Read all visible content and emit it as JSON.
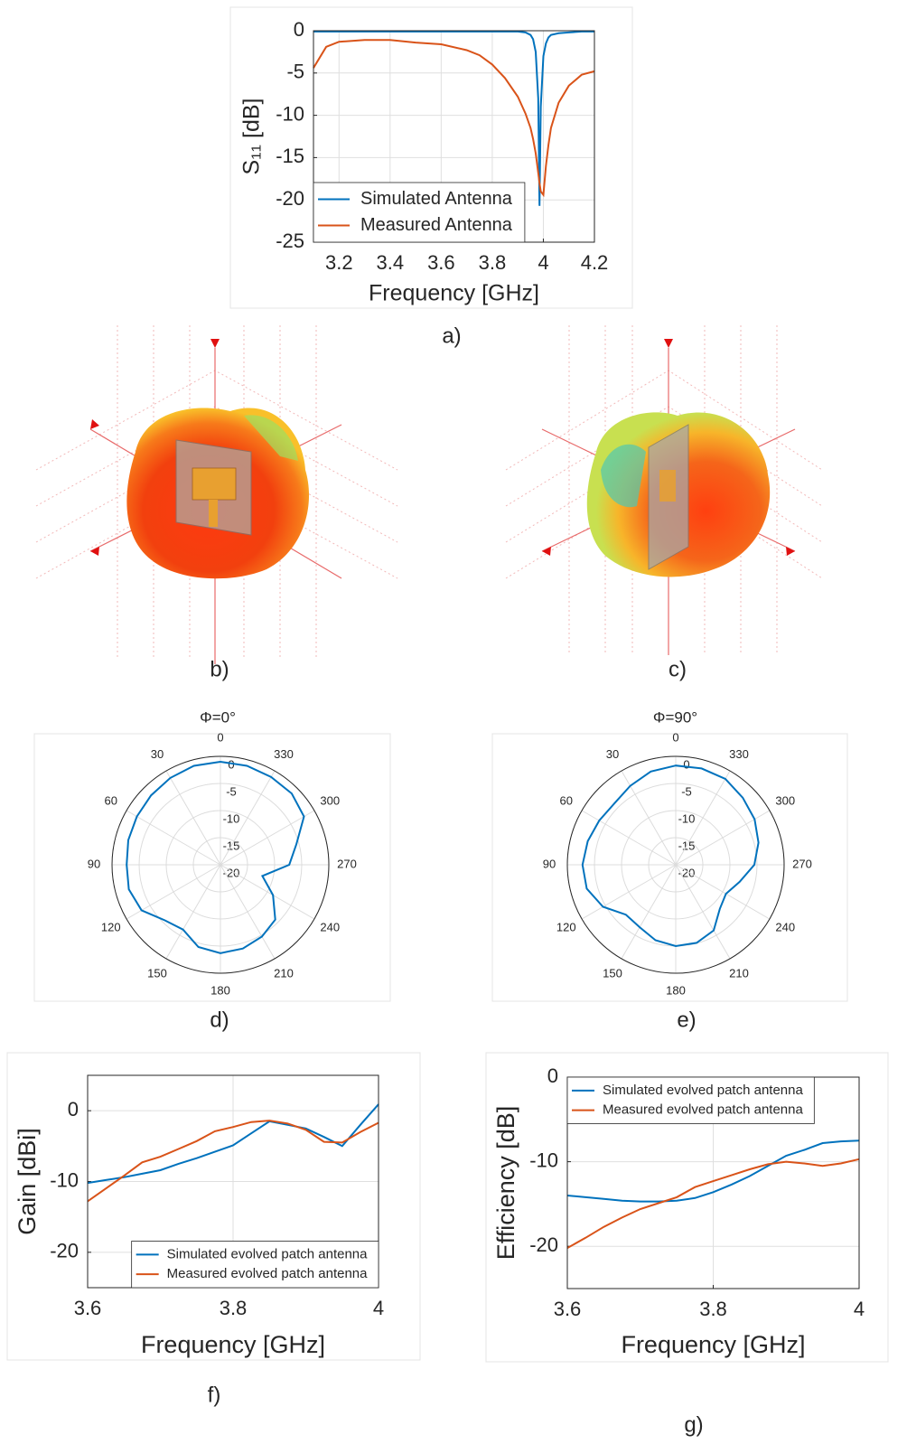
{
  "chart_data": [
    {
      "type": "line",
      "caption": "a)",
      "xlabel": "Frequency [GHz]",
      "ylabel": "S₁₁ [dB]",
      "xlim": [
        3.1,
        4.2
      ],
      "xticks": [
        3.2,
        3.4,
        3.6,
        3.8,
        4,
        4.2
      ],
      "ylim": [
        -25,
        0
      ],
      "yticks": [
        0,
        -5,
        -10,
        -15,
        -20,
        -25
      ],
      "grid": true,
      "legend": "lower-left",
      "x": [
        3.1,
        3.15,
        3.2,
        3.3,
        3.4,
        3.5,
        3.6,
        3.7,
        3.75,
        3.8,
        3.85,
        3.9,
        3.93,
        3.95,
        3.96,
        3.97,
        3.98,
        3.985,
        3.99,
        4.0,
        4.01,
        4.02,
        4.03,
        4.06,
        4.1,
        4.15,
        4.2
      ],
      "series": [
        {
          "name": "Simulated Antenna",
          "color": "#0072BD",
          "values": [
            -0.1,
            -0.1,
            -0.1,
            -0.1,
            -0.1,
            -0.1,
            -0.1,
            -0.1,
            -0.1,
            -0.1,
            -0.1,
            -0.1,
            -0.2,
            -0.5,
            -1,
            -2.5,
            -8,
            -20.7,
            -9,
            -3,
            -1.5,
            -0.8,
            -0.5,
            -0.3,
            -0.2,
            -0.1,
            -0.1
          ]
        },
        {
          "name": "Measured Antenna",
          "color": "#D95319",
          "values": [
            -4.4,
            -1.9,
            -1.3,
            -1.1,
            -1.1,
            -1.4,
            -1.6,
            -2.3,
            -2.9,
            -4,
            -5.6,
            -7.8,
            -9.8,
            -11.5,
            -12.8,
            -14.5,
            -16.8,
            -18,
            -19,
            -19.4,
            -16,
            -13.5,
            -11.5,
            -8.5,
            -6.5,
            -5.2,
            -4.8
          ]
        }
      ]
    },
    {
      "type": "radiation-3d",
      "caption": "b)"
    },
    {
      "type": "radiation-3d",
      "caption": "c)"
    },
    {
      "type": "polar",
      "title": "Φ=0°",
      "caption": "d)",
      "color": "#0072BD",
      "thetaticks": [
        0,
        30,
        60,
        90,
        120,
        150,
        180,
        210,
        240,
        270,
        300,
        330
      ],
      "rlim": [
        -20,
        0
      ],
      "rticks": [
        0,
        -5,
        -10,
        -15,
        -20
      ],
      "theta": [
        0,
        15,
        30,
        45,
        60,
        75,
        90,
        105,
        120,
        135,
        150,
        165,
        180,
        195,
        210,
        225,
        240,
        255,
        270,
        285,
        300,
        315,
        330,
        345
      ],
      "values": [
        -1,
        -1.1,
        -1.5,
        -1.9,
        -2.2,
        -2.4,
        -2.7,
        -2.5,
        -3.2,
        -5.5,
        -6.2,
        -4.3,
        -3.7,
        -4.0,
        -4.7,
        -5.7,
        -8.8,
        -12,
        -7.3,
        -5.5,
        -2.2,
        -1.4,
        -1.3,
        -1.1
      ]
    },
    {
      "type": "polar",
      "title": "Φ=90°",
      "caption": "e)",
      "color": "#0072BD",
      "thetaticks": [
        0,
        30,
        60,
        90,
        120,
        150,
        180,
        210,
        240,
        270,
        300,
        330
      ],
      "rlim": [
        -20,
        0
      ],
      "rticks": [
        0,
        -5,
        -10,
        -15,
        -20
      ],
      "theta": [
        0,
        15,
        30,
        45,
        60,
        75,
        90,
        105,
        120,
        135,
        150,
        165,
        180,
        195,
        210,
        225,
        240,
        255,
        270,
        285,
        300,
        315,
        330,
        345
      ],
      "values": [
        -1.7,
        -2.2,
        -3.2,
        -4,
        -3.7,
        -3.2,
        -2.8,
        -3,
        -4.5,
        -7,
        -6.7,
        -5.6,
        -5,
        -5.1,
        -6,
        -8.5,
        -9.3,
        -7.8,
        -5.5,
        -4.2,
        -3.2,
        -2.5,
        -1.7,
        -1.6
      ]
    },
    {
      "type": "line",
      "caption": "f)",
      "xlabel": "Frequency [GHz]",
      "ylabel": "Gain [dBi]",
      "xlim": [
        3.6,
        4
      ],
      "xticks": [
        3.6,
        3.8,
        4
      ],
      "ylim": [
        -25,
        5
      ],
      "yticks": [
        0,
        -10,
        -20
      ],
      "grid": true,
      "legend": "lower-right",
      "x": [
        3.6,
        3.625,
        3.65,
        3.675,
        3.7,
        3.725,
        3.75,
        3.775,
        3.8,
        3.825,
        3.85,
        3.875,
        3.9,
        3.925,
        3.95,
        3.975,
        4
      ],
      "series": [
        {
          "name": "Simulated evolved patch antenna",
          "color": "#0072BD",
          "values": [
            -10.2,
            -9.8,
            -9.4,
            -8.9,
            -8.4,
            -7.5,
            -6.7,
            -5.8,
            -4.9,
            -3.2,
            -1.5,
            -2.0,
            -2.5,
            -3.7,
            -5.0,
            -2.0,
            0.9
          ]
        },
        {
          "name": "Measured evolved patch antenna",
          "color": "#D95319",
          "values": [
            -12.8,
            -11,
            -9.2,
            -7.3,
            -6.5,
            -5.4,
            -4.3,
            -2.9,
            -2.3,
            -1.6,
            -1.4,
            -1.8,
            -2.7,
            -4.4,
            -4.5,
            -3,
            -1.7
          ]
        }
      ]
    },
    {
      "type": "line",
      "caption": "g)",
      "xlabel": "Frequency [GHz]",
      "ylabel": "Efficiency [dB]",
      "xlim": [
        3.6,
        4
      ],
      "xticks": [
        3.6,
        3.8,
        4
      ],
      "ylim": [
        -25,
        0
      ],
      "yticks": [
        0,
        -10,
        -20
      ],
      "grid": true,
      "legend": "upper-left",
      "x": [
        3.6,
        3.625,
        3.65,
        3.675,
        3.7,
        3.725,
        3.75,
        3.775,
        3.8,
        3.825,
        3.85,
        3.875,
        3.9,
        3.925,
        3.95,
        3.975,
        4
      ],
      "series": [
        {
          "name": "Simulated evolved patch antenna",
          "color": "#0072BD",
          "values": [
            -14,
            -14.2,
            -14.4,
            -14.6,
            -14.7,
            -14.7,
            -14.6,
            -14.3,
            -13.6,
            -12.7,
            -11.7,
            -10.5,
            -9.3,
            -8.6,
            -7.8,
            -7.6,
            -7.5
          ]
        },
        {
          "name": "Measured evolved patch antenna",
          "color": "#D95319",
          "values": [
            -20.2,
            -19,
            -17.7,
            -16.6,
            -15.6,
            -14.9,
            -14.2,
            -13,
            -12.3,
            -11.6,
            -10.9,
            -10.3,
            -10,
            -10.2,
            -10.5,
            -10.2,
            -9.7
          ]
        }
      ]
    }
  ]
}
